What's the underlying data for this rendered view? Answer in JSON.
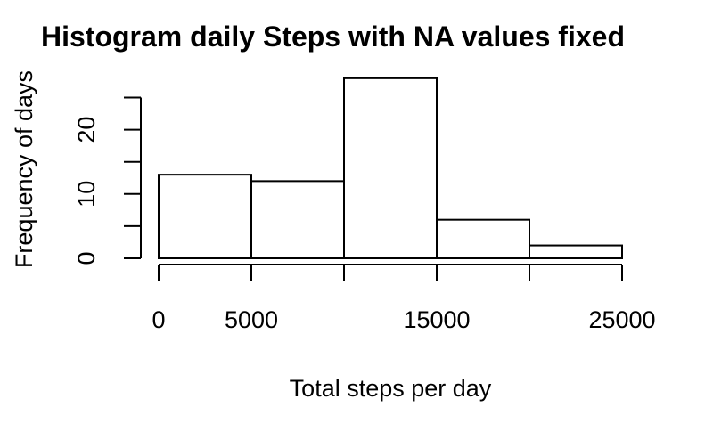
{
  "chart_data": {
    "type": "bar",
    "title": "Histogram daily Steps with NA values fixed",
    "xlabel": "Total steps per day",
    "ylabel": "Frequency of days",
    "bins": [
      {
        "from": 0,
        "to": 5000,
        "count": 13
      },
      {
        "from": 5000,
        "to": 10000,
        "count": 12
      },
      {
        "from": 10000,
        "to": 15000,
        "count": 28
      },
      {
        "from": 15000,
        "to": 20000,
        "count": 6
      },
      {
        "from": 20000,
        "to": 25000,
        "count": 2
      }
    ],
    "xlim": [
      0,
      25000
    ],
    "ylim": [
      0,
      28
    ],
    "x_ticks": [
      0,
      5000,
      10000,
      15000,
      20000,
      25000
    ],
    "x_tick_labels": [
      "0",
      "5000",
      "",
      "15000",
      "",
      "25000"
    ],
    "y_ticks": [
      0,
      5,
      10,
      15,
      20,
      25
    ],
    "y_tick_labels": [
      "0",
      "",
      "10",
      "",
      "20",
      ""
    ],
    "grid": false,
    "legend": "none",
    "bar_fill": "#ffffff",
    "bar_stroke": "#000000"
  }
}
